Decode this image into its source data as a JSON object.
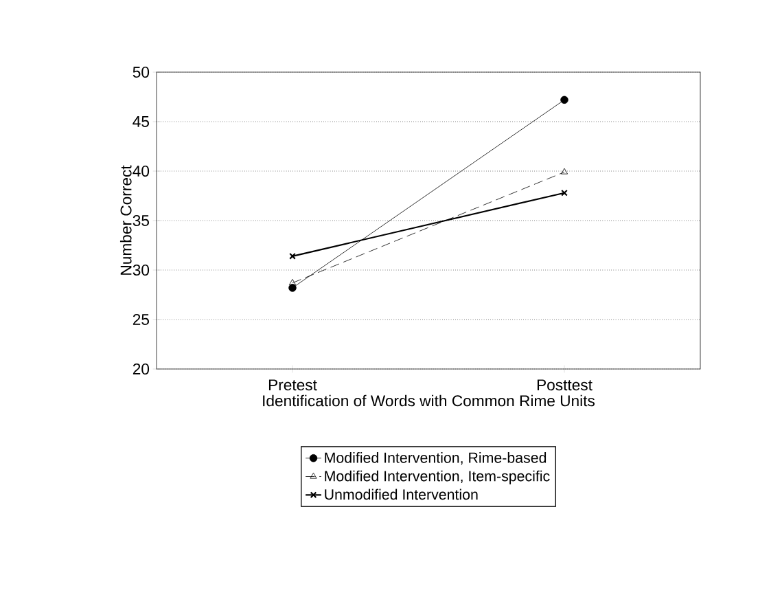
{
  "chart_data": {
    "type": "line",
    "xlabel": "Identification of Words with Common Rime Units",
    "ylabel": "Number Correct",
    "categories": [
      "Pretest",
      "Posttest"
    ],
    "series": [
      {
        "name": "Modified Intervention, Rime-based",
        "color": "#000000",
        "values": [
          28.2,
          47.2
        ],
        "marker": "circle",
        "line_style": "solid"
      },
      {
        "name": "Modified Intervention, Item-specific",
        "color": "#000000",
        "values": [
          28.7,
          39.9
        ],
        "marker": "triangle",
        "line_style": "dashed"
      },
      {
        "name": "Unmodified Intervention",
        "color": "#000000",
        "values": [
          31.4,
          37.8
        ],
        "marker": "cross",
        "line_style": "solid"
      }
    ],
    "ylim": [
      20,
      50
    ],
    "yticks": [
      20,
      25,
      30,
      35,
      40,
      45,
      50
    ],
    "grid": "y",
    "legend": "bottom"
  }
}
